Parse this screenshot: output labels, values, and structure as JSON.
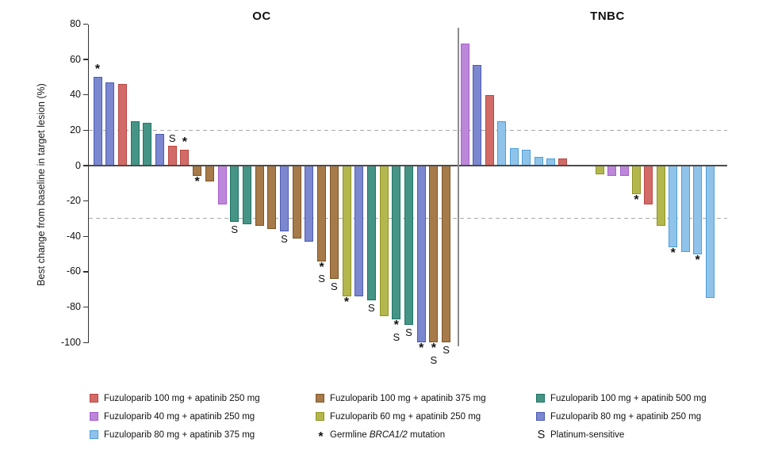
{
  "chart_data": {
    "type": "bar",
    "subtype": "waterfall",
    "ylabel": "Best change from baseline in target lesion (%)",
    "ylim": [
      -100,
      80
    ],
    "yticks": [
      80,
      60,
      40,
      20,
      0,
      -20,
      -40,
      -60,
      -80,
      -100
    ],
    "reference_lines": [
      20,
      -30
    ],
    "grid": "dashed-reference-only",
    "legend_position": "bottom",
    "groups": {
      "red": {
        "label": "Fuzuloparib 100 mg + apatinib 250 mg",
        "fill": "#d26b67",
        "stroke": "#bb4642"
      },
      "brown": {
        "label": "Fuzuloparib 100 mg + apatinib 375 mg",
        "fill": "#a67a49",
        "stroke": "#7e5526"
      },
      "teal": {
        "label": "Fuzuloparib 100 mg + apatinib 500 mg",
        "fill": "#459486",
        "stroke": "#1f7465"
      },
      "purple": {
        "label": "Fuzuloparib 40 mg + apatinib 250 mg",
        "fill": "#bc87d9",
        "stroke": "#a95bd4"
      },
      "yellowgreen": {
        "label": "Fuzuloparib 60 mg + apatinib 250 mg",
        "fill": "#b3b74d",
        "stroke": "#8f9423"
      },
      "blueviolet": {
        "label": "Fuzuloparib 80 mg + apatinib 250 mg",
        "fill": "#7b87cf",
        "stroke": "#4c5cb4"
      },
      "lightblue": {
        "label": "Fuzuloparib 80 mg + apatinib 375 mg",
        "fill": "#90c3ea",
        "stroke": "#4d9fdc"
      }
    },
    "markers": {
      "brca": {
        "symbol": "*",
        "label": "Germline BRCA1/2 mutation",
        "italic_part": "BRCA1/2"
      },
      "platinum": {
        "symbol": "S",
        "label": "Platinum-sensitive"
      }
    },
    "panels": [
      {
        "title": "OC",
        "bars": [
          {
            "group": "blueviolet",
            "value": 50,
            "marks": [
              "*"
            ]
          },
          {
            "group": "blueviolet",
            "value": 47,
            "marks": []
          },
          {
            "group": "red",
            "value": 46,
            "marks": []
          },
          {
            "group": "teal",
            "value": 25,
            "marks": []
          },
          {
            "group": "teal",
            "value": 24,
            "marks": []
          },
          {
            "group": "blueviolet",
            "value": 18,
            "marks": []
          },
          {
            "group": "red",
            "value": 11,
            "marks": [
              "S"
            ]
          },
          {
            "group": "red",
            "value": 9,
            "marks": [
              "*"
            ]
          },
          {
            "group": "brown",
            "value": -6,
            "marks": [
              "*"
            ]
          },
          {
            "group": "brown",
            "value": -9,
            "marks": []
          },
          {
            "group": "purple",
            "value": -22,
            "marks": []
          },
          {
            "group": "teal",
            "value": -32,
            "marks": [
              "S"
            ]
          },
          {
            "group": "teal",
            "value": -33,
            "marks": []
          },
          {
            "group": "brown",
            "value": -34,
            "marks": []
          },
          {
            "group": "brown",
            "value": -36,
            "marks": []
          },
          {
            "group": "blueviolet",
            "value": -37,
            "marks": [
              "S"
            ]
          },
          {
            "group": "brown",
            "value": -41,
            "marks": []
          },
          {
            "group": "blueviolet",
            "value": -43,
            "marks": []
          },
          {
            "group": "brown",
            "value": -54,
            "marks": [
              "*",
              "S"
            ]
          },
          {
            "group": "brown",
            "value": -64,
            "marks": [
              "S"
            ]
          },
          {
            "group": "yellowgreen",
            "value": -74,
            "marks": [
              "*"
            ]
          },
          {
            "group": "blueviolet",
            "value": -74,
            "marks": []
          },
          {
            "group": "teal",
            "value": -76,
            "marks": [
              "S"
            ]
          },
          {
            "group": "yellowgreen",
            "value": -85,
            "marks": []
          },
          {
            "group": "teal",
            "value": -87,
            "marks": [
              "*",
              "S"
            ]
          },
          {
            "group": "teal",
            "value": -90,
            "marks": [
              "S"
            ]
          },
          {
            "group": "blueviolet",
            "value": -100,
            "marks": [
              "*"
            ]
          },
          {
            "group": "brown",
            "value": -100,
            "marks": [
              "*",
              "S"
            ]
          },
          {
            "group": "brown",
            "value": -100,
            "marks": [
              "S"
            ]
          }
        ]
      },
      {
        "title": "TNBC",
        "bars": [
          {
            "group": "purple",
            "value": 69,
            "marks": []
          },
          {
            "group": "blueviolet",
            "value": 57,
            "marks": []
          },
          {
            "group": "red",
            "value": 40,
            "marks": []
          },
          {
            "group": "lightblue",
            "value": 25,
            "marks": []
          },
          {
            "group": "lightblue",
            "value": 10,
            "marks": []
          },
          {
            "group": "lightblue",
            "value": 9,
            "marks": []
          },
          {
            "group": "lightblue",
            "value": 5,
            "marks": []
          },
          {
            "group": "lightblue",
            "value": 4,
            "marks": []
          },
          {
            "group": "red",
            "value": 4,
            "marks": []
          },
          {
            "group": "yellowgreen",
            "value": -5,
            "marks": [],
            "slot": 11
          },
          {
            "group": "purple",
            "value": -6,
            "marks": []
          },
          {
            "group": "purple",
            "value": -6,
            "marks": []
          },
          {
            "group": "yellowgreen",
            "value": -16,
            "marks": [
              "*"
            ]
          },
          {
            "group": "red",
            "value": -22,
            "marks": []
          },
          {
            "group": "yellowgreen",
            "value": -34,
            "marks": []
          },
          {
            "group": "lightblue",
            "value": -46,
            "marks": [
              "*"
            ]
          },
          {
            "group": "lightblue",
            "value": -49,
            "marks": []
          },
          {
            "group": "lightblue",
            "value": -50,
            "marks": [
              "*"
            ]
          },
          {
            "group": "lightblue",
            "value": -75,
            "marks": []
          }
        ]
      }
    ]
  },
  "legend": {
    "columns": [
      [
        {
          "type": "group",
          "key": "red"
        },
        {
          "type": "group",
          "key": "purple"
        },
        {
          "type": "group",
          "key": "lightblue"
        }
      ],
      [
        {
          "type": "group",
          "key": "brown"
        },
        {
          "type": "group",
          "key": "yellowgreen"
        },
        {
          "type": "marker",
          "key": "brca"
        }
      ],
      [
        {
          "type": "group",
          "key": "teal"
        },
        {
          "type": "group",
          "key": "blueviolet"
        },
        {
          "type": "marker",
          "key": "platinum"
        }
      ]
    ]
  }
}
